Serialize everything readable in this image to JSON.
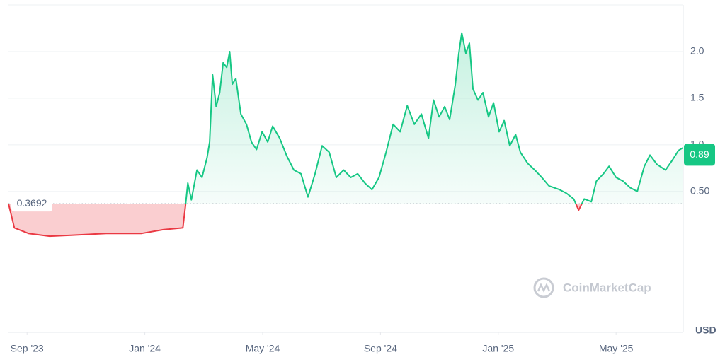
{
  "chart_data": {
    "type": "line",
    "x": [
      -0.63,
      -0.43,
      0.05,
      0.77,
      1.49,
      2.69,
      3.89,
      4.62,
      5.29,
      5.38,
      5.46,
      5.58,
      5.77,
      5.94,
      6.11,
      6.2,
      6.3,
      6.42,
      6.54,
      6.66,
      6.78,
      6.88,
      6.97,
      7.09,
      7.26,
      7.45,
      7.62,
      7.79,
      7.98,
      8.17,
      8.34,
      8.58,
      8.82,
      9.06,
      9.3,
      9.54,
      9.78,
      10.02,
      10.26,
      10.5,
      10.75,
      10.99,
      11.23,
      11.47,
      11.71,
      11.95,
      12.19,
      12.43,
      12.67,
      12.91,
      13.15,
      13.39,
      13.63,
      13.8,
      13.99,
      14.18,
      14.35,
      14.54,
      14.66,
      14.76,
      14.9,
      15.02,
      15.14,
      15.31,
      15.48,
      15.67,
      15.84,
      16.03,
      16.2,
      16.39,
      16.59,
      16.75,
      17.0,
      17.24,
      17.48,
      17.72,
      18.08,
      18.32,
      18.56,
      18.73,
      18.92,
      19.16,
      19.33,
      19.57,
      19.76,
      20.0,
      20.24,
      20.48,
      20.72,
      20.96,
      21.15,
      21.39,
      21.68,
      21.92,
      22.12,
      22.28
    ],
    "values": [
      0.37,
      0.11,
      0.05,
      0.02,
      0.03,
      0.05,
      0.05,
      0.09,
      0.11,
      0.35,
      0.59,
      0.41,
      0.73,
      0.65,
      0.86,
      1.03,
      1.75,
      1.41,
      1.56,
      1.88,
      1.83,
      2.0,
      1.65,
      1.71,
      1.33,
      1.22,
      1.03,
      0.95,
      1.14,
      1.03,
      1.2,
      1.07,
      0.88,
      0.73,
      0.69,
      0.44,
      0.69,
      0.99,
      0.92,
      0.65,
      0.73,
      0.65,
      0.69,
      0.59,
      0.52,
      0.65,
      0.92,
      1.22,
      1.14,
      1.42,
      1.22,
      1.33,
      1.07,
      1.48,
      1.3,
      1.41,
      1.27,
      1.64,
      1.98,
      2.2,
      1.98,
      2.09,
      1.6,
      1.48,
      1.56,
      1.3,
      1.45,
      1.14,
      1.26,
      0.99,
      1.11,
      0.92,
      0.8,
      0.73,
      0.65,
      0.56,
      0.52,
      0.48,
      0.42,
      0.3,
      0.42,
      0.39,
      0.61,
      0.69,
      0.77,
      0.65,
      0.61,
      0.54,
      0.5,
      0.77,
      0.89,
      0.79,
      0.73,
      0.84,
      0.94,
      0.97
    ],
    "xlim": [
      -0.63,
      22.28
    ],
    "xticks": [
      {
        "value": 0,
        "label": "Sep '23"
      },
      {
        "value": 4,
        "label": "Jan '24"
      },
      {
        "value": 8,
        "label": "May '24"
      },
      {
        "value": 12,
        "label": "Sep '24"
      },
      {
        "value": 16,
        "label": "Jan '25"
      },
      {
        "value": 20,
        "label": "May '25"
      }
    ],
    "ylim": [
      -1.01,
      2.5
    ],
    "yticks": [
      {
        "value": 0.5,
        "label": "0.50"
      },
      {
        "value": 1,
        "label": "1.0"
      },
      {
        "value": 1.5,
        "label": "1.5"
      },
      {
        "value": 2,
        "label": "2.0"
      }
    ],
    "baseline": 0.3692,
    "current_price": 0.89,
    "up_color": "#16c784",
    "down_color": "#ea3943",
    "grid": true,
    "watermark": "CoinMarketCap",
    "currency": "USD"
  }
}
